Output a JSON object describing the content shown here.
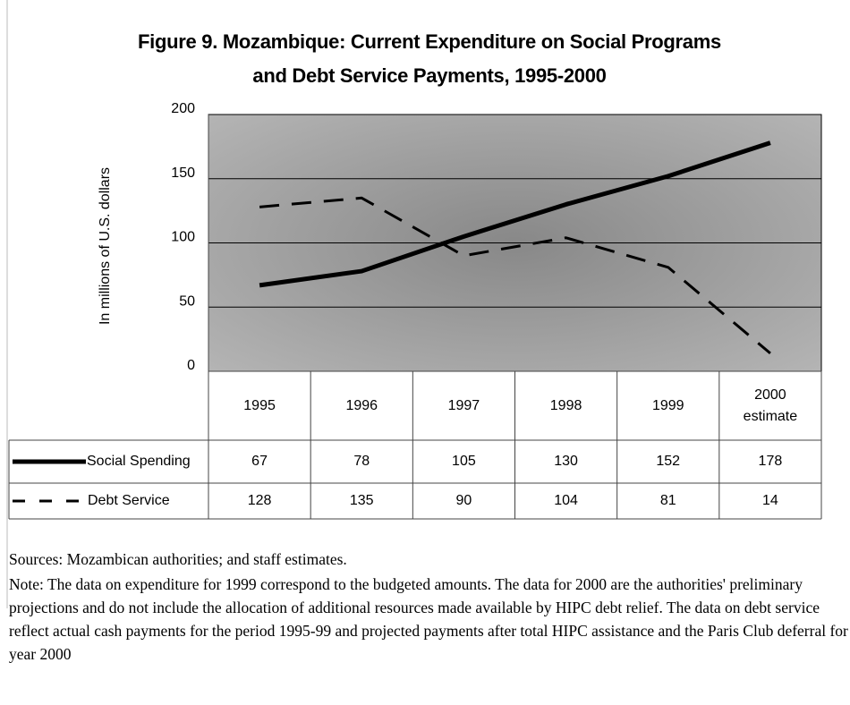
{
  "chart_data": {
    "type": "line",
    "title": "Figure 9. Mozambique: Current Expenditure on Social Programs and Debt Service Payments, 1995-2000",
    "y_label": "In millions of U.S. dollars",
    "categories": [
      "1995",
      "1996",
      "1997",
      "1998",
      "1999",
      "2000 estimate"
    ],
    "series": [
      {
        "name": "Social Spending",
        "color": "#000000",
        "style": "solid",
        "values": [
          67,
          78,
          105,
          130,
          152,
          178
        ]
      },
      {
        "name": "Debt Service",
        "color": "#000000",
        "style": "dashed",
        "values": [
          128,
          135,
          90,
          104,
          81,
          14
        ]
      }
    ],
    "ylim": [
      0,
      200
    ],
    "yticks": [
      0,
      50,
      100,
      150,
      200
    ],
    "grid": true,
    "sources": "Sources: Mozambican authorities; and staff estimates.",
    "note": "Note: The data on expenditure for 1999 correspond to the budgeted amounts. The data for 2000 are the authorities' preliminary projections and do not include the allocation of additional resources made available by HIPC debt relief. The data on debt service reflect actual cash payments for the period 1995-99 and projected payments after total HIPC assistance and the Paris Club deferral for year 2000"
  }
}
